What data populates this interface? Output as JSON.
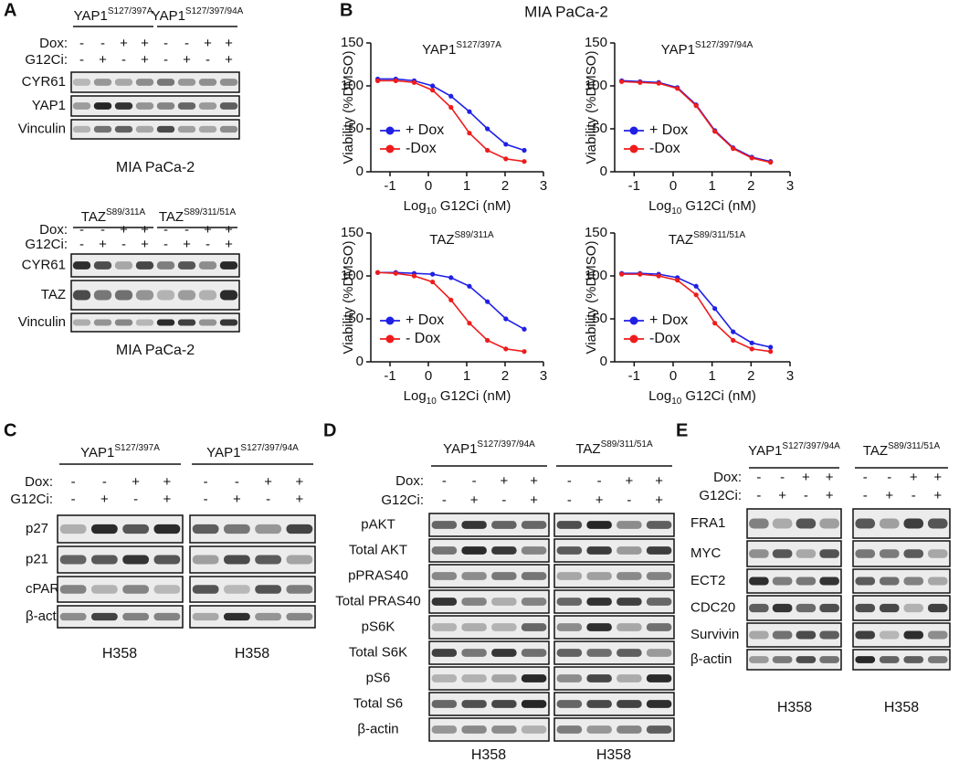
{
  "panel_labels": [
    "A",
    "B",
    "C",
    "D",
    "E"
  ],
  "panel_b_title": "MIA PaCa-2",
  "blots": [
    {
      "groups": [
        {
          "name": "YAP1",
          "sup": "S127/397A"
        },
        {
          "name": "YAP1",
          "sup": "S127/397/94A"
        }
      ],
      "conditions": [
        {
          "name": "Dox:",
          "values": [
            "-",
            "-",
            "+",
            "+",
            "-",
            "-",
            "+",
            "+"
          ]
        },
        {
          "name": "G12Ci:",
          "values": [
            "-",
            "+",
            "-",
            "+",
            "-",
            "+",
            "-",
            "+"
          ]
        }
      ],
      "rows": [
        "CYR61",
        "YAP1",
        "Vinculin"
      ],
      "captions": [
        "MIA PaCa-2"
      ]
    },
    {
      "groups": [
        {
          "name": "TAZ",
          "sup": "S89/311A"
        },
        {
          "name": "TAZ",
          "sup": "S89/311/51A"
        }
      ],
      "conditions": [
        {
          "name": "Dox:",
          "values": [
            "-",
            "-",
            "+",
            "+",
            "-",
            "-",
            "+",
            "+"
          ]
        },
        {
          "name": "G12Ci:",
          "values": [
            "-",
            "+",
            "-",
            "+",
            "-",
            "+",
            "-",
            "+"
          ]
        }
      ],
      "rows": [
        "CYR61",
        "TAZ",
        "Vinculin"
      ],
      "captions": [
        "MIA PaCa-2"
      ]
    },
    {
      "groups": [
        {
          "name": "YAP1",
          "sup": "S127/397A"
        },
        {
          "name": "YAP1",
          "sup": "S127/397/94A"
        }
      ],
      "conditions": [
        {
          "name": "Dox:",
          "values": [
            "-",
            "-",
            "+",
            "+",
            "-",
            "-",
            "+",
            "+"
          ]
        },
        {
          "name": "G12Ci:",
          "values": [
            "-",
            "+",
            "-",
            "+",
            "-",
            "+",
            "-",
            "+"
          ]
        }
      ],
      "rows": [
        "p27",
        "p21",
        "cPARP",
        "β-actin"
      ],
      "captions": [
        "H358",
        "H358"
      ]
    },
    {
      "groups": [
        {
          "name": "YAP1",
          "sup": "S127/397/94A"
        },
        {
          "name": "TAZ",
          "sup": "S89/311/51A"
        }
      ],
      "conditions": [
        {
          "name": "Dox:",
          "values": [
            "-",
            "-",
            "+",
            "+",
            "-",
            "-",
            "+",
            "+"
          ]
        },
        {
          "name": "G12Ci:",
          "values": [
            "-",
            "+",
            "-",
            "+",
            "-",
            "+",
            "-",
            "+"
          ]
        }
      ],
      "rows": [
        "pAKT",
        "Total AKT",
        "pPRAS40",
        "Total PRAS40",
        "pS6K",
        "Total S6K",
        "pS6",
        "Total S6",
        "β-actin"
      ],
      "captions": [
        "H358",
        "H358"
      ]
    },
    {
      "groups": [
        {
          "name": "YAP1",
          "sup": "S127/397/94A"
        },
        {
          "name": "TAZ",
          "sup": "S89/311/51A"
        }
      ],
      "conditions": [
        {
          "name": "Dox:",
          "values": [
            "-",
            "-",
            "+",
            "+",
            "-",
            "-",
            "+",
            "+"
          ]
        },
        {
          "name": "G12Ci:",
          "values": [
            "-",
            "+",
            "-",
            "+",
            "-",
            "+",
            "-",
            "+"
          ]
        }
      ],
      "rows": [
        "FRA1",
        "MYC",
        "ECT2",
        "CDC20",
        "Survivin",
        "β-actin"
      ],
      "captions": [
        "H358",
        "H358"
      ]
    }
  ],
  "chart_data": [
    {
      "type": "line",
      "title": {
        "text": "YAP1",
        "sup": "S127/397A"
      },
      "x_label": {
        "text": "Log",
        "sub": "10",
        "rest": "G12Ci (nM)"
      },
      "y_label": "Viability (%DMSO)",
      "x": [
        -1.32,
        -0.85,
        -0.37,
        0.11,
        0.59,
        1.07,
        1.54,
        2.02,
        2.5
      ],
      "series": [
        {
          "name": "+ Dox",
          "color": "#1f1fe6",
          "values": [
            108,
            108,
            106,
            100,
            88,
            70,
            50,
            32,
            25
          ]
        },
        {
          "name": "-Dox",
          "color": "#ee1c1c",
          "values": [
            106,
            106,
            104,
            95,
            75,
            45,
            25,
            15,
            12
          ]
        }
      ],
      "xlim": [
        -1.5,
        3
      ],
      "ylim": [
        0,
        150
      ],
      "xticks": [
        -1,
        0,
        1,
        2,
        3
      ],
      "yticks": [
        0,
        50,
        100,
        150
      ],
      "legend": "lower left"
    },
    {
      "type": "line",
      "title": {
        "text": "YAP1",
        "sup": "S127/397/94A"
      },
      "x_label": {
        "text": "Log",
        "sub": "10",
        "rest": "G12Ci (nM)"
      },
      "y_label": "Viability (%DMSO)",
      "x": [
        -1.32,
        -0.85,
        -0.37,
        0.11,
        0.59,
        1.07,
        1.54,
        2.02,
        2.5
      ],
      "series": [
        {
          "name": "+ Dox",
          "color": "#1f1fe6",
          "values": [
            106,
            105,
            104,
            98,
            78,
            48,
            28,
            17,
            12
          ]
        },
        {
          "name": "-Dox",
          "color": "#ee1c1c",
          "values": [
            105,
            104,
            103,
            97,
            77,
            47,
            27,
            16,
            11
          ]
        }
      ],
      "xlim": [
        -1.5,
        3
      ],
      "ylim": [
        0,
        150
      ],
      "xticks": [
        -1,
        0,
        1,
        2,
        3
      ],
      "yticks": [
        0,
        50,
        100,
        150
      ],
      "legend": "lower left"
    },
    {
      "type": "line",
      "title": {
        "text": "TAZ",
        "sup": "S89/311A"
      },
      "x_label": {
        "text": "Log",
        "sub": "10",
        "rest": "G12Ci (nM)"
      },
      "y_label": "Viability (%DMSO)",
      "x": [
        -1.32,
        -0.85,
        -0.37,
        0.11,
        0.59,
        1.07,
        1.54,
        2.02,
        2.5
      ],
      "series": [
        {
          "name": "+ Dox",
          "color": "#1f1fe6",
          "values": [
            104,
            104,
            103,
            102,
            98,
            88,
            70,
            50,
            38
          ]
        },
        {
          "name": "- Dox",
          "color": "#ee1c1c",
          "values": [
            104,
            103,
            100,
            93,
            72,
            45,
            25,
            15,
            12
          ]
        }
      ],
      "xlim": [
        -1.5,
        3
      ],
      "ylim": [
        0,
        150
      ],
      "xticks": [
        -1,
        0,
        1,
        2,
        3
      ],
      "yticks": [
        0,
        50,
        100,
        150
      ],
      "legend": "lower left"
    },
    {
      "type": "line",
      "title": {
        "text": "TAZ",
        "sup": "S89/311/51A"
      },
      "x_label": {
        "text": "Log",
        "sub": "10",
        "rest": "G12Ci (nM)"
      },
      "y_label": "Viability (%DMSO)",
      "x": [
        -1.32,
        -0.85,
        -0.37,
        0.11,
        0.59,
        1.07,
        1.54,
        2.02,
        2.5
      ],
      "series": [
        {
          "name": "+ Dox",
          "color": "#1f1fe6",
          "values": [
            103,
            103,
            102,
            98,
            88,
            62,
            35,
            22,
            17
          ]
        },
        {
          "name": "-Dox",
          "color": "#ee1c1c",
          "values": [
            102,
            102,
            100,
            95,
            78,
            45,
            25,
            15,
            12
          ]
        }
      ],
      "xlim": [
        -1.5,
        3
      ],
      "ylim": [
        0,
        150
      ],
      "xticks": [
        -1,
        0,
        1,
        2,
        3
      ],
      "yticks": [
        0,
        50,
        100,
        150
      ],
      "legend": "lower left"
    }
  ]
}
